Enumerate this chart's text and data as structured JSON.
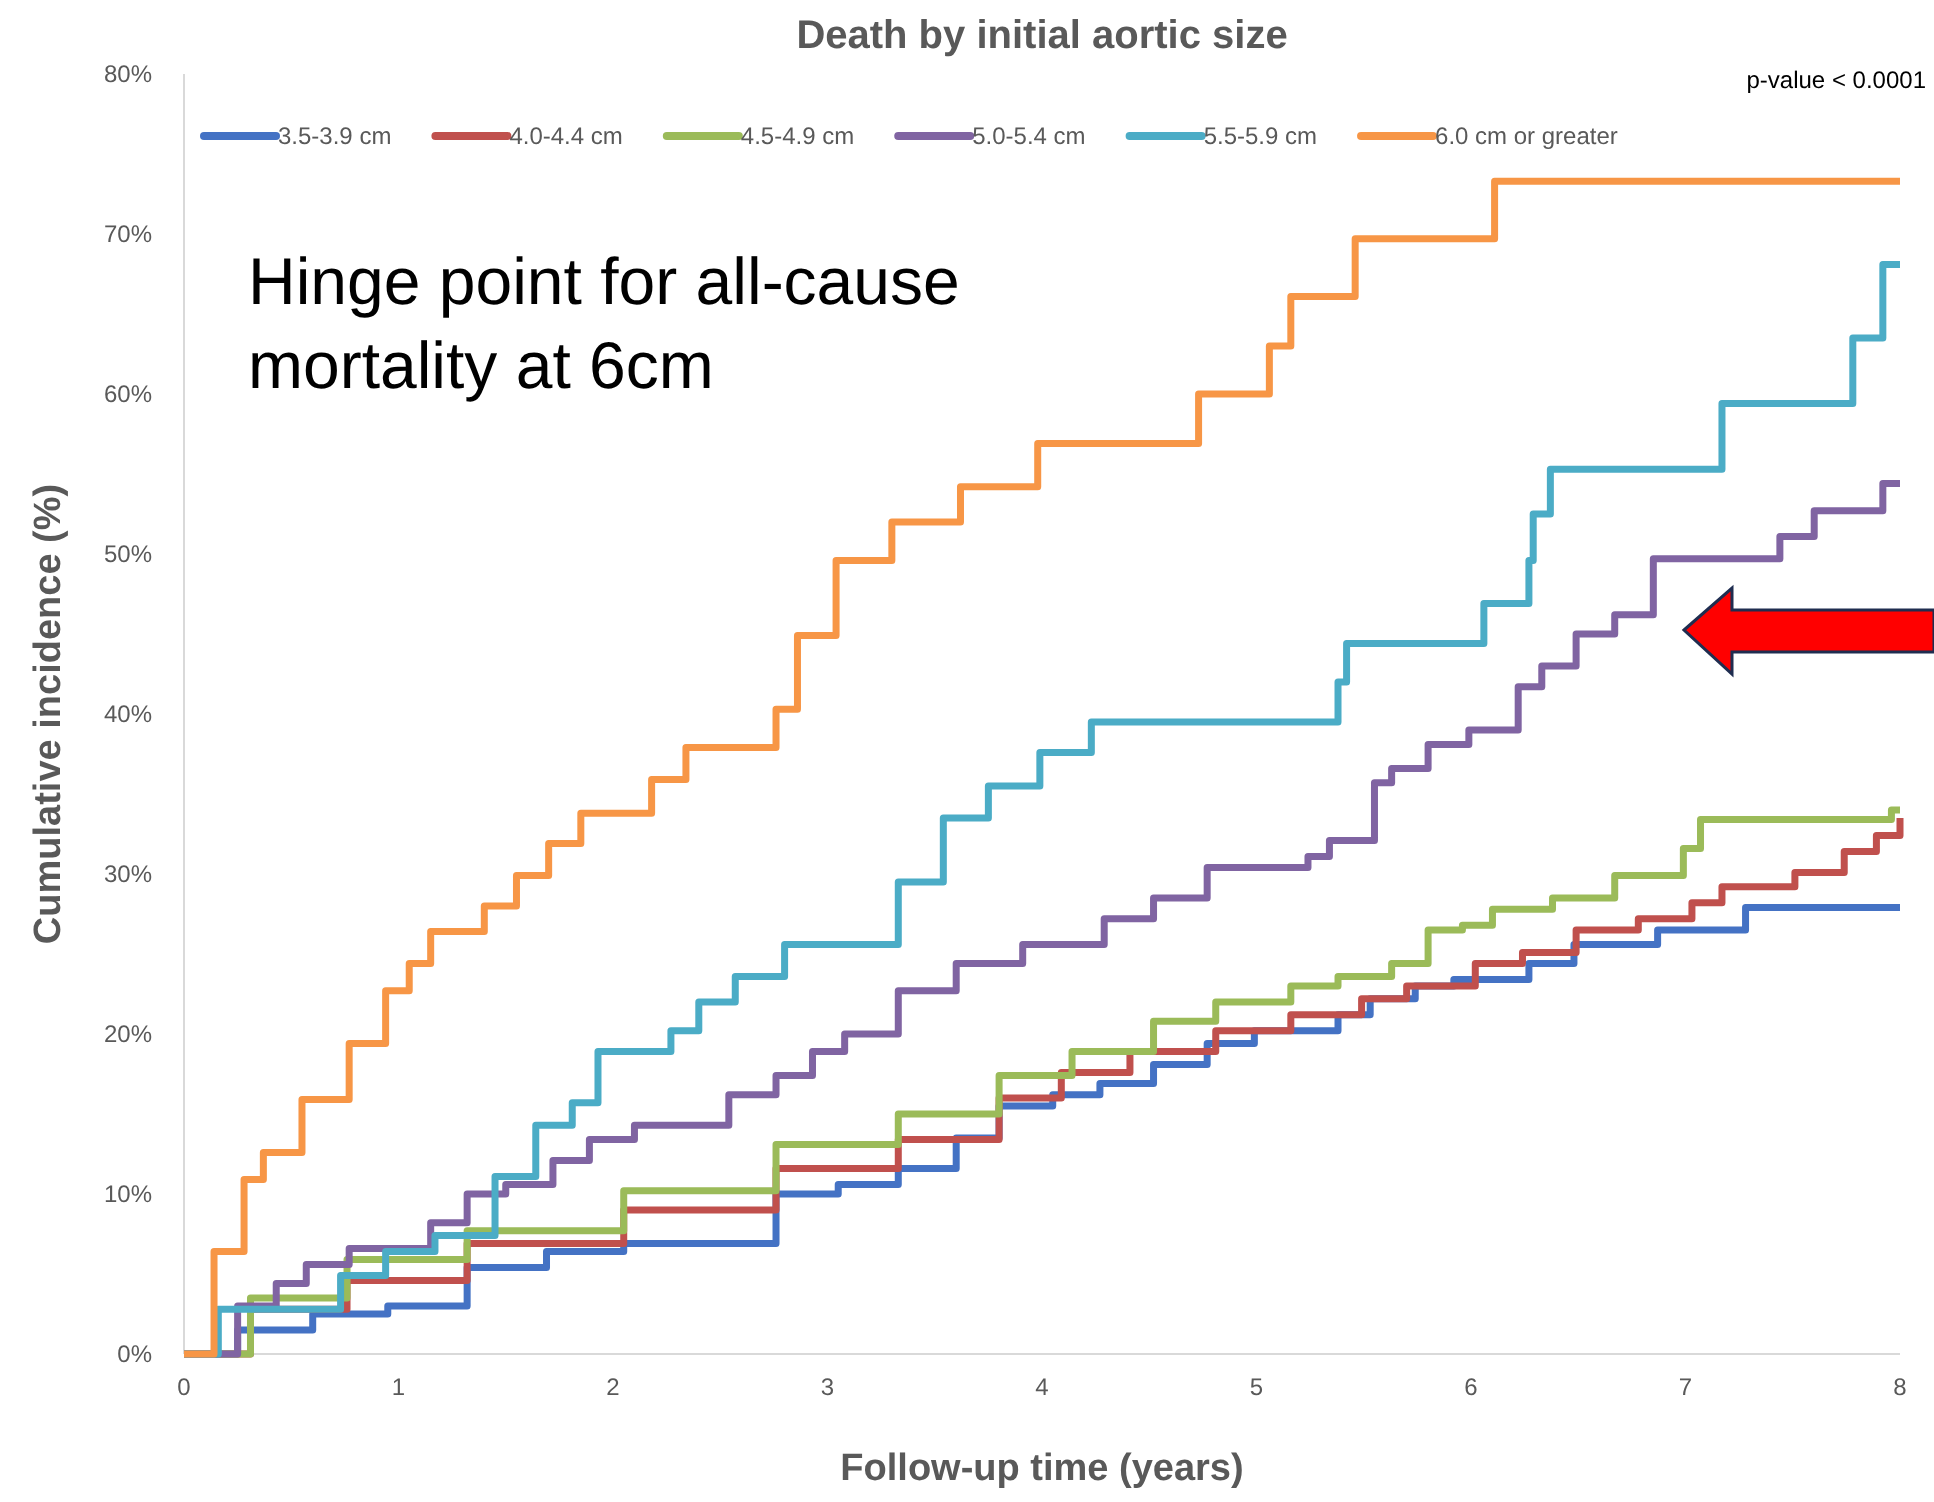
{
  "chart_data": {
    "type": "step",
    "title": "Death by initial aortic size",
    "xlabel": "Follow-up time (years)",
    "ylabel": "Cumulative incidence (%)",
    "annotations": [
      "Hinge point for all-cause mortality at 6cm",
      "p-value < 0.0001"
    ],
    "xlim": [
      0,
      8
    ],
    "xticks": [
      0,
      1,
      2,
      3,
      4,
      5,
      6,
      7,
      8
    ],
    "ylim": [
      0,
      80
    ],
    "yticks": [
      {
        "value": 0,
        "label": "0%"
      },
      {
        "value": 10,
        "label": "10%"
      },
      {
        "value": 20,
        "label": "20%"
      },
      {
        "value": 30,
        "label": "30%"
      },
      {
        "value": 40,
        "label": "40%"
      },
      {
        "value": 50,
        "label": "50%"
      },
      {
        "value": 60,
        "label": "60%"
      },
      {
        "value": 70,
        "label": "70%"
      },
      {
        "value": 80,
        "label": "80%"
      }
    ],
    "grid": false,
    "legend": "top",
    "marker": "none",
    "line_style": "solid",
    "series": [
      {
        "name": "3.5-3.9 cm",
        "color": "#4472c4",
        "x": [
          0,
          0.25,
          0.6,
          0.95,
          1.32,
          1.69,
          2.05,
          2.76,
          3.05,
          3.33,
          3.6,
          3.8,
          4.05,
          4.27,
          4.52,
          4.77,
          4.99,
          5.38,
          5.53,
          5.74,
          5.92,
          6.27,
          6.48,
          6.87,
          7.28,
          8
        ],
        "values": [
          0,
          1.5,
          2.5,
          3,
          5.4,
          6.4,
          6.9,
          10,
          10.6,
          11.6,
          13.5,
          15.5,
          16.2,
          16.9,
          18.1,
          19.4,
          20.2,
          21.2,
          22.2,
          23,
          23.4,
          24.4,
          25.6,
          26.5,
          27.9,
          27.9
        ]
      },
      {
        "name": "4.0-4.4 cm",
        "color": "#c0504d",
        "x": [
          0,
          0.31,
          0.76,
          1.32,
          2.05,
          2.76,
          3.33,
          3.8,
          4.09,
          4.41,
          4.81,
          5.16,
          5.49,
          5.7,
          6.02,
          6.24,
          6.49,
          6.78,
          7.03,
          7.17,
          7.51,
          7.74,
          7.89,
          8
        ],
        "values": [
          0,
          2.8,
          4.6,
          6.9,
          9,
          11.6,
          13.4,
          16,
          17.6,
          18.9,
          20.2,
          21.2,
          22.2,
          23,
          24.4,
          25.1,
          26.5,
          27.2,
          28.2,
          29.2,
          30.1,
          31.4,
          32.4,
          33.5
        ]
      },
      {
        "name": "4.5-4.9 cm",
        "color": "#9bbb59",
        "x": [
          0,
          0.31,
          0.76,
          1.32,
          2.05,
          2.76,
          3.33,
          3.8,
          4.14,
          4.52,
          4.81,
          5.16,
          5.38,
          5.63,
          5.8,
          5.96,
          6.1,
          6.38,
          6.67,
          6.99,
          7.07,
          7.96,
          8
        ],
        "values": [
          0,
          3.5,
          5.9,
          7.7,
          10.2,
          13.1,
          15,
          17.4,
          18.9,
          20.8,
          22,
          23,
          23.6,
          24.4,
          26.5,
          26.8,
          27.8,
          28.5,
          29.9,
          31.6,
          33.4,
          34,
          34
        ]
      },
      {
        "name": "5.0-5.4 cm",
        "color": "#8064a2",
        "x": [
          0,
          0.25,
          0.43,
          0.57,
          0.77,
          1.15,
          1.32,
          1.5,
          1.72,
          1.89,
          2.1,
          2.54,
          2.76,
          2.93,
          3.08,
          3.33,
          3.6,
          3.91,
          4.29,
          4.52,
          4.77,
          5.24,
          5.34,
          5.55,
          5.63,
          5.8,
          5.99,
          6.22,
          6.33,
          6.49,
          6.67,
          6.85,
          7.44,
          7.6,
          7.92,
          8
        ],
        "values": [
          0,
          3,
          4.4,
          5.6,
          6.6,
          8.2,
          10,
          10.6,
          12.1,
          13.4,
          14.3,
          16.2,
          17.4,
          18.9,
          20,
          22.7,
          24.4,
          25.6,
          27.2,
          28.5,
          30.4,
          31.1,
          32.1,
          35.7,
          36.6,
          38.1,
          39,
          41.7,
          43,
          45,
          46.2,
          49.7,
          51.1,
          52.7,
          54.4,
          54.4
        ]
      },
      {
        "name": "5.5-5.9 cm",
        "color": "#4bacc6",
        "x": [
          0,
          0.16,
          0.73,
          0.94,
          1.17,
          1.45,
          1.64,
          1.81,
          1.93,
          2.27,
          2.4,
          2.57,
          2.8,
          3.33,
          3.54,
          3.75,
          3.99,
          4.23,
          5.38,
          5.42,
          6.06,
          6.27,
          6.29,
          6.37,
          7.17,
          7.78,
          7.92,
          8
        ],
        "values": [
          0,
          2.8,
          4.9,
          6.4,
          7.4,
          11.1,
          14.3,
          15.7,
          18.9,
          20.2,
          22,
          23.6,
          25.6,
          29.5,
          33.5,
          35.5,
          37.6,
          39.5,
          42,
          44.4,
          46.9,
          49.6,
          52.5,
          55.3,
          59.4,
          63.5,
          68.1,
          68.1
        ]
      },
      {
        "name": "6.0 cm or greater",
        "color": "#f79646",
        "x": [
          0,
          0.14,
          0.28,
          0.37,
          0.55,
          0.77,
          0.94,
          1.05,
          1.15,
          1.4,
          1.55,
          1.7,
          1.85,
          2.18,
          2.34,
          2.76,
          2.86,
          3.04,
          3.3,
          3.62,
          3.98,
          4.73,
          5.06,
          5.16,
          5.46,
          6.11,
          8
        ],
        "values": [
          0,
          6.4,
          10.9,
          12.6,
          15.9,
          19.4,
          22.7,
          24.4,
          26.4,
          28,
          29.9,
          31.9,
          33.8,
          35.9,
          37.9,
          40.3,
          44.9,
          49.6,
          52,
          54.2,
          56.9,
          60,
          63,
          66.1,
          69.7,
          73.3,
          73.3
        ]
      }
    ]
  }
}
